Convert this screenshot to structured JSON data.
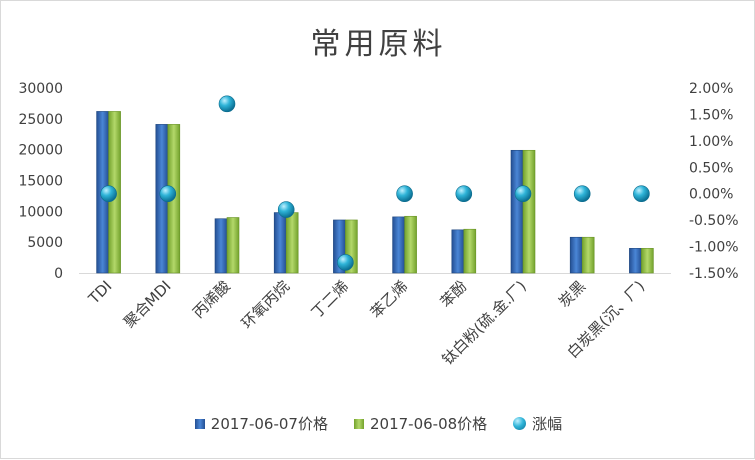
{
  "chart_data": {
    "type": "bar",
    "title": "常用原料",
    "categories": [
      "TDI",
      "聚合MDI",
      "丙烯酸",
      "环氧丙烷",
      "丁二烯",
      "苯乙烯",
      "苯酚",
      "钛白粉(硫.金.厂)",
      "炭黑",
      "白炭黑(沉、厂)"
    ],
    "series": [
      {
        "name": "2017-06-07价格",
        "type": "bar",
        "axis": "left",
        "color": "#2e5fa8",
        "values": [
          26200,
          24100,
          8800,
          9800,
          8600,
          9100,
          7000,
          19900,
          5800,
          4000
        ]
      },
      {
        "name": "2017-06-08价格",
        "type": "bar",
        "axis": "left",
        "color": "#8cb83b",
        "values": [
          26200,
          24100,
          9000,
          9800,
          8600,
          9200,
          7100,
          19900,
          5800,
          4000
        ]
      },
      {
        "name": "涨幅",
        "type": "scatter",
        "axis": "right",
        "color": "#1fa3c8",
        "values": [
          0.0,
          0.0,
          1.7,
          -0.3,
          -1.3,
          0.0,
          0.0,
          0.0,
          0.0,
          0.0
        ]
      }
    ],
    "ylim_left": [
      0,
      30000
    ],
    "yticks_left": [
      "30000",
      "25000",
      "20000",
      "15000",
      "10000",
      "5000",
      "0"
    ],
    "ylim_right": [
      -1.5,
      2.0
    ],
    "yticks_right": [
      "2.00%",
      "1.50%",
      "1.00%",
      "0.50%",
      "0.00%",
      "-0.50%",
      "-1.00%",
      "-1.50%"
    ],
    "grid": false,
    "legend_position": "bottom"
  }
}
